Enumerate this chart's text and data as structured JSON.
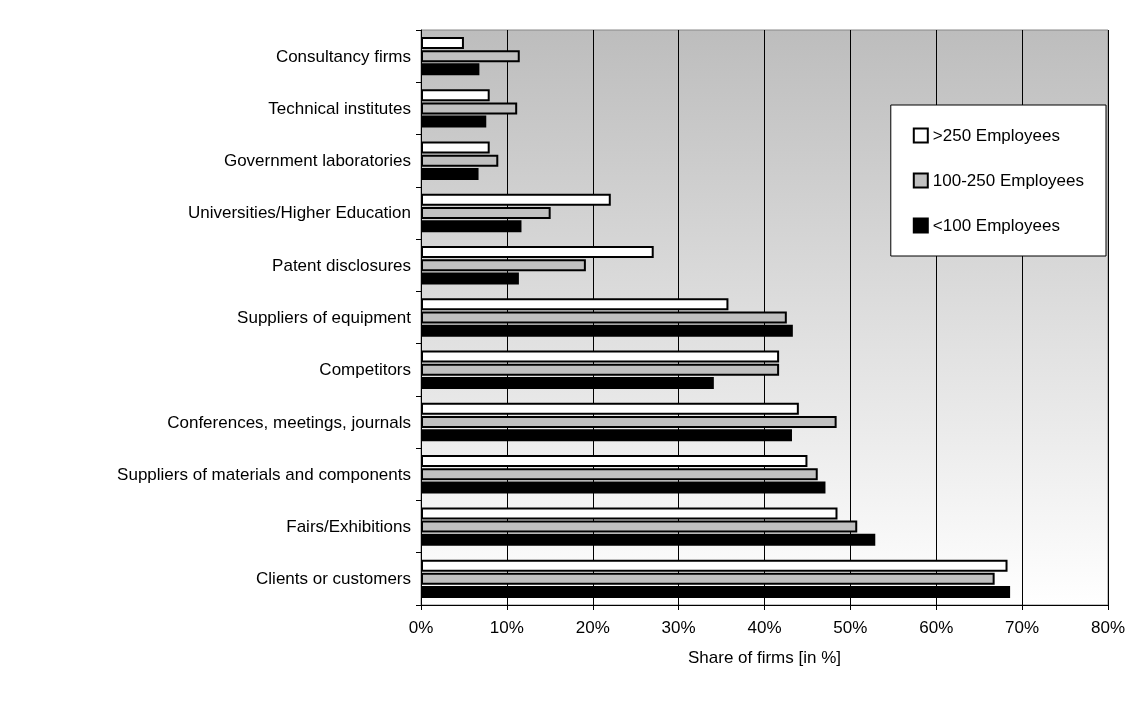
{
  "chart_data": {
    "type": "bar",
    "orientation": "horizontal",
    "xlabel": "Share of firms [in %]",
    "categories": [
      "Consultancy firms",
      "Technical institutes",
      "Government laboratories",
      "Universities/Higher Education",
      "Patent disclosures",
      "Suppliers of equipment",
      "Competitors",
      "Conferences, meetings, journals",
      "Suppliers of materials and components",
      "Fairs/Exhibitions",
      "Clients or customers"
    ],
    "series": [
      {
        "name": ">250 Employees",
        "color": "#ffffff",
        "values": [
          5.0,
          8.0,
          8.0,
          22.1,
          27.1,
          35.8,
          41.7,
          44.0,
          45.0,
          48.5,
          68.3
        ]
      },
      {
        "name": "100-250 Employees",
        "color": "#c0c0c0",
        "values": [
          11.5,
          11.2,
          9.0,
          15.1,
          19.2,
          42.6,
          41.7,
          48.4,
          46.2,
          50.8,
          66.8
        ]
      },
      {
        "name": "<100 Employees",
        "color": "#000000",
        "values": [
          6.8,
          7.6,
          6.7,
          11.7,
          11.4,
          43.3,
          34.1,
          43.2,
          47.1,
          52.9,
          68.6
        ]
      }
    ],
    "xlim": [
      0,
      80
    ],
    "xticks": [
      {
        "value": 0,
        "label": "0%"
      },
      {
        "value": 10,
        "label": "10%"
      },
      {
        "value": 20,
        "label": "20%"
      },
      {
        "value": 30,
        "label": "30%"
      },
      {
        "value": 40,
        "label": "40%"
      },
      {
        "value": 50,
        "label": "50%"
      },
      {
        "value": 60,
        "label": "60%"
      },
      {
        "value": 70,
        "label": "70%"
      },
      {
        "value": 80,
        "label": "80%"
      }
    ],
    "grid": "x",
    "legend": "top right"
  }
}
